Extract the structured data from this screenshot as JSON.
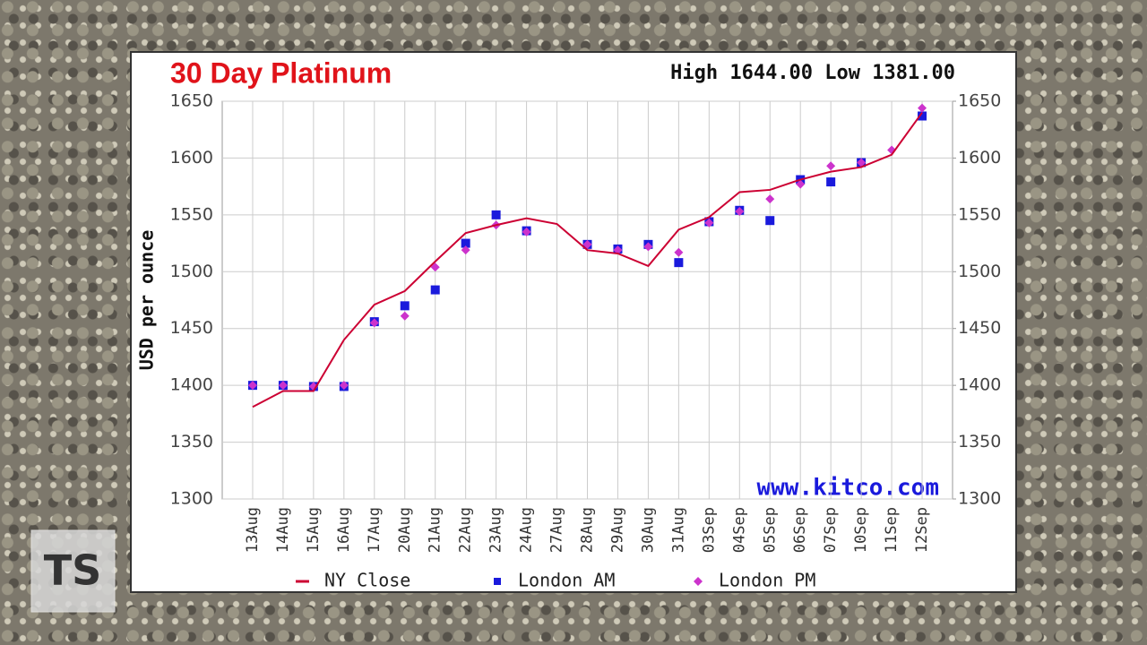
{
  "chart_data": {
    "type": "line",
    "title": "30 Day Platinum",
    "header": "High 1644.00 Low 1381.00",
    "watermark": "www.kitco.com",
    "y_label": "USD per ounce",
    "logo": "TS",
    "categories": [
      "13Aug",
      "14Aug",
      "15Aug",
      "16Aug",
      "17Aug",
      "20Aug",
      "21Aug",
      "22Aug",
      "23Aug",
      "24Aug",
      "27Aug",
      "28Aug",
      "29Aug",
      "30Aug",
      "31Aug",
      "03Sep",
      "04Sep",
      "05Sep",
      "06Sep",
      "07Sep",
      "10Sep",
      "11Sep",
      "12Sep"
    ],
    "series": [
      {
        "name": "NY Close",
        "color": "#cc0033",
        "marker": "line",
        "values": [
          1381,
          1395,
          1395,
          1440,
          1471,
          1483,
          1509,
          1534,
          1541,
          1547,
          1542,
          1519,
          1516,
          1505,
          1537,
          1548,
          1570,
          1572,
          1581,
          1588,
          1592,
          1603,
          1640
        ]
      },
      {
        "name": "London AM",
        "color": "#1a1adc",
        "marker": "square",
        "values": [
          1400,
          1400,
          1399,
          1399,
          1456,
          1470,
          1484,
          1525,
          1550,
          1536,
          null,
          1524,
          1520,
          1524,
          1508,
          1544,
          1554,
          1545,
          1581,
          1579,
          1596,
          null,
          1637
        ]
      },
      {
        "name": "London PM",
        "color": "#cc33cc",
        "marker": "diamond",
        "values": [
          1400,
          1400,
          1399,
          1400,
          1455,
          1461,
          1504,
          1519,
          1541,
          1535,
          null,
          1524,
          1519,
          1522,
          1517,
          1543,
          1553,
          1564,
          1577,
          1593,
          1596,
          1607,
          1644
        ]
      }
    ],
    "ylim": [
      1300,
      1650
    ],
    "yticks": [
      1300,
      1350,
      1400,
      1450,
      1500,
      1550,
      1600,
      1650
    ],
    "y2lim": [
      1300,
      1650
    ],
    "y2ticks": [
      1300,
      1350,
      1400,
      1450,
      1500,
      1550,
      1600,
      1650
    ],
    "grid": true
  }
}
